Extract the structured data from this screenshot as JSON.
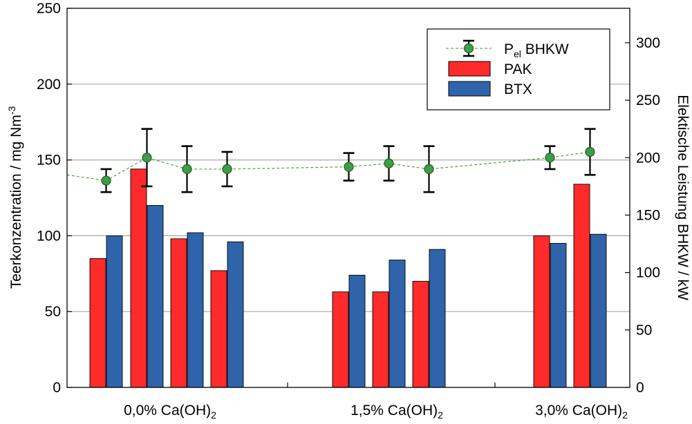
{
  "chart_data": {
    "type": "bar",
    "categories": [
      {
        "base": "0,0% Ca(OH)",
        "sub": "2"
      },
      {
        "base": "1,5% Ca(OH)",
        "sub": "2"
      },
      {
        "base": "3,0% Ca(OH)",
        "sub": "2"
      }
    ],
    "left_axis": {
      "label": "Teerkonzentration / mg Nm",
      "label_sup": "-3",
      "ylim": [
        0,
        250
      ],
      "ticks": [
        0,
        50,
        100,
        150,
        200,
        250
      ]
    },
    "right_axis": {
      "label": "Elektische Leistung BHKW / kW",
      "ylim": [
        0,
        330
      ],
      "ticks": [
        0,
        50,
        100,
        150,
        200,
        250,
        300
      ]
    },
    "grid": "horizontal at left-axis ticks 50,100,150,200",
    "legend": {
      "position": "top-right",
      "entries": [
        {
          "key": "pel",
          "main": "P",
          "sub": "el",
          "rest": " BHKW"
        },
        {
          "key": "pak",
          "main": "PAK"
        },
        {
          "key": "btx",
          "main": "BTX"
        }
      ]
    },
    "colors": {
      "PAK": "#ff2a2a",
      "BTX": "#2f64aa",
      "Pel_line": "#5caa3c",
      "Pel_marker": "#3f9e45"
    },
    "groups": [
      {
        "category": 0,
        "PAK": [
          85,
          144,
          98,
          77
        ],
        "BTX": [
          100,
          120,
          102,
          96
        ]
      },
      {
        "category": 1,
        "PAK": [
          63,
          63,
          70
        ],
        "BTX": [
          74,
          84,
          91
        ]
      },
      {
        "category": 2,
        "PAK": [
          100,
          134
        ],
        "BTX": [
          95,
          101
        ]
      }
    ],
    "pel_series": {
      "name": "P el BHKW",
      "axis": "right",
      "values": [
        180,
        200,
        190,
        190,
        192,
        195,
        190,
        200,
        205
      ],
      "error_low": [
        10,
        25,
        20,
        15,
        12,
        15,
        20,
        10,
        20
      ],
      "error_high": [
        10,
        25,
        20,
        15,
        12,
        15,
        20,
        10,
        20
      ]
    }
  }
}
